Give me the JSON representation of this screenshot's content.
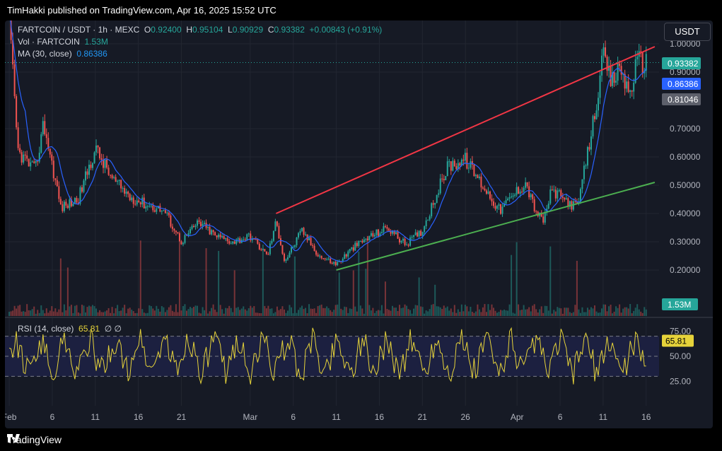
{
  "header": {
    "publisher_line": "TimHakki published on TradingView.com, Apr 16, 2025 15:52 UTC"
  },
  "legend": {
    "symbol": "FARTCOIN / USDT · 1h · MEXC",
    "o_label": "O",
    "o_value": "0.92400",
    "h_label": "H",
    "h_value": "0.95104",
    "l_label": "L",
    "l_value": "0.90929",
    "c_label": "C",
    "c_value": "0.93382",
    "change": "+0.00843 (+0.91%)",
    "vol_label": "Vol · FARTCOIN",
    "vol_value": "1.53M",
    "ma_label": "MA (30, close)",
    "ma_value": "0.86386",
    "rsi_label": "RSI (14, close)",
    "rsi_value": "65.81",
    "rsi_extra": "∅  ∅"
  },
  "currency_button": "USDT",
  "footer": {
    "brand": "TradingView"
  },
  "colors": {
    "up": "#26a69a",
    "down": "#ef5350",
    "ma": "#2962ff",
    "rsi": "#e6d33a",
    "resistance": "#f23645",
    "support": "#4caf50",
    "text": "#b2b5be"
  },
  "chart_data": {
    "type": "candlestick",
    "symbol": "FARTCOIN / USDT",
    "interval": "1h",
    "y_ticks": [
      "1.00000",
      "0.90000",
      "0.70000",
      "0.60000",
      "0.50000",
      "0.40000",
      "0.30000",
      "0.20000"
    ],
    "x_ticks": [
      "Feb",
      "6",
      "11",
      "16",
      "21",
      "Mar",
      "6",
      "11",
      "16",
      "21",
      "26",
      "Apr",
      "6",
      "11",
      "16"
    ],
    "price_badges": [
      {
        "label": "0.93382",
        "color": "#26a69a"
      },
      {
        "label": "0.86386",
        "color": "#2962ff"
      },
      {
        "label": "0.81046",
        "color": "#5d606b"
      }
    ],
    "volume_badge": "1.53M",
    "rsi": {
      "ticks": [
        "75.00",
        "50.00",
        "25.00"
      ],
      "current": "65.81",
      "upper": 70,
      "lower": 30
    },
    "price_path_approx": [
      [
        "2025-02-01",
        1.08
      ],
      [
        "2025-02-02",
        0.62
      ],
      [
        "2025-02-04",
        0.55
      ],
      [
        "2025-02-05",
        0.72
      ],
      [
        "2025-02-07",
        0.42
      ],
      [
        "2025-02-09",
        0.45
      ],
      [
        "2025-02-11",
        0.63
      ],
      [
        "2025-02-13",
        0.52
      ],
      [
        "2025-02-15",
        0.46
      ],
      [
        "2025-02-17",
        0.43
      ],
      [
        "2025-02-19",
        0.41
      ],
      [
        "2025-02-21",
        0.3
      ],
      [
        "2025-02-23",
        0.37
      ],
      [
        "2025-02-25",
        0.32
      ],
      [
        "2025-02-27",
        0.3
      ],
      [
        "2025-03-01",
        0.32
      ],
      [
        "2025-03-03",
        0.25
      ],
      [
        "2025-03-04",
        0.37
      ],
      [
        "2025-03-05",
        0.23
      ],
      [
        "2025-03-07",
        0.34
      ],
      [
        "2025-03-09",
        0.25
      ],
      [
        "2025-03-11",
        0.22
      ],
      [
        "2025-03-13",
        0.28
      ],
      [
        "2025-03-15",
        0.32
      ],
      [
        "2025-03-17",
        0.35
      ],
      [
        "2025-03-19",
        0.29
      ],
      [
        "2025-03-21",
        0.34
      ],
      [
        "2025-03-22",
        0.42
      ],
      [
        "2025-03-24",
        0.57
      ],
      [
        "2025-03-26",
        0.59
      ],
      [
        "2025-03-28",
        0.5
      ],
      [
        "2025-03-30",
        0.41
      ],
      [
        "2025-04-01",
        0.48
      ],
      [
        "2025-04-02",
        0.51
      ],
      [
        "2025-04-03",
        0.42
      ],
      [
        "2025-04-04",
        0.37
      ],
      [
        "2025-04-05",
        0.48
      ],
      [
        "2025-04-07",
        0.44
      ],
      [
        "2025-04-08",
        0.42
      ],
      [
        "2025-04-09",
        0.58
      ],
      [
        "2025-04-10",
        0.75
      ],
      [
        "2025-04-11",
        0.95
      ],
      [
        "2025-04-12",
        0.86
      ],
      [
        "2025-04-13",
        0.92
      ],
      [
        "2025-04-14",
        0.82
      ],
      [
        "2025-04-15",
        0.94
      ],
      [
        "2025-04-16",
        0.93382
      ]
    ],
    "trendlines": [
      {
        "name": "resistance",
        "color": "#f23645",
        "points": [
          [
            "2025-03-04",
            0.4
          ],
          [
            "2025-04-17",
            0.99
          ]
        ]
      },
      {
        "name": "support",
        "color": "#4caf50",
        "points": [
          [
            "2025-03-11",
            0.2
          ],
          [
            "2025-04-17",
            0.51
          ]
        ]
      }
    ],
    "grid": true
  }
}
